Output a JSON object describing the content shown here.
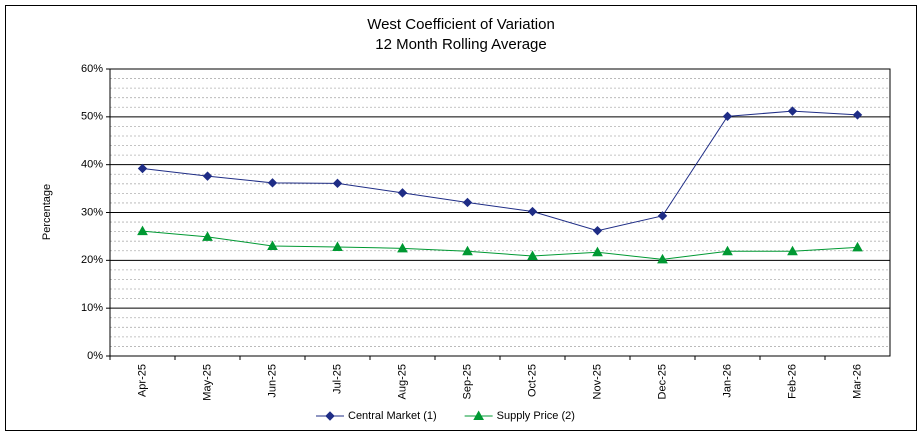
{
  "chart_data": {
    "type": "line",
    "title": [
      "West Coefficient of Variation",
      "12 Month Rolling Average"
    ],
    "y_label": "Percentage",
    "categories": [
      "Apr-25",
      "May-25",
      "Jun-25",
      "Jul-25",
      "Aug-25",
      "Sep-25",
      "Oct-25",
      "Nov-25",
      "Dec-25",
      "Jan-26",
      "Feb-26",
      "Mar-26"
    ],
    "series": [
      {
        "name": "Central Market (1)",
        "color": "#1f2d86",
        "marker": "diamond",
        "values": [
          39.2,
          37.6,
          36.2,
          36.1,
          34.1,
          32.1,
          30.2,
          26.2,
          29.3,
          50.1,
          51.2,
          50.4
        ]
      },
      {
        "name": "Supply Price (2)",
        "color": "#009933",
        "marker": "triangle",
        "values": [
          26.1,
          24.9,
          23.0,
          22.8,
          22.5,
          21.9,
          20.9,
          21.7,
          20.2,
          21.9,
          21.9,
          22.7
        ]
      }
    ],
    "ylim": [
      0,
      60
    ],
    "yticks": [
      {
        "value": 0,
        "label": "0%"
      },
      {
        "value": 10,
        "label": "10%"
      },
      {
        "value": 20,
        "label": "20%"
      },
      {
        "value": 30,
        "label": "30%"
      },
      {
        "value": 40,
        "label": "40%"
      },
      {
        "value": 50,
        "label": "50%"
      },
      {
        "value": 60,
        "label": "60%"
      }
    ],
    "minor_yticks": [
      2,
      4,
      6,
      8,
      12,
      14,
      16,
      18,
      22,
      24,
      26,
      28,
      32,
      34,
      36,
      38,
      42,
      44,
      46,
      48,
      52,
      54,
      56,
      58
    ],
    "grid": true,
    "legend": "bottom"
  }
}
